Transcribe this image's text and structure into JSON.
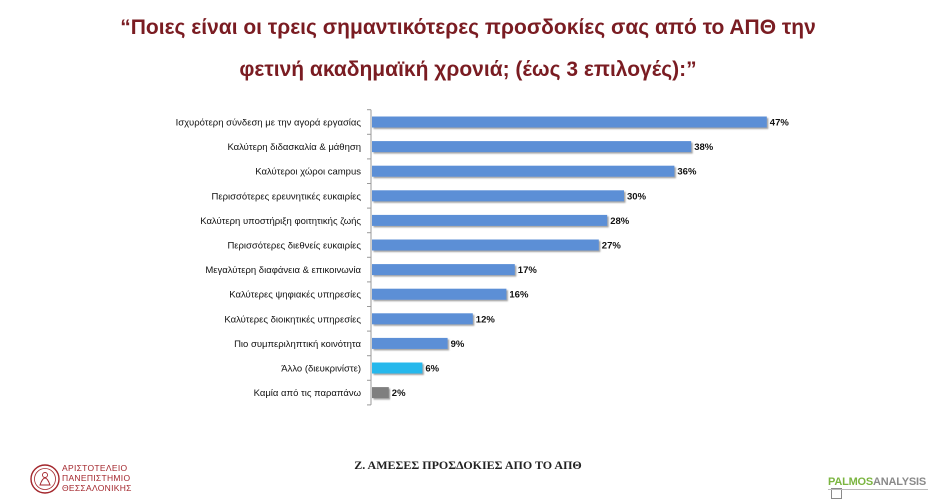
{
  "title_line1": "“Ποιες είναι οι τρεις σημαντικότερες προσδοκίες σας από το ΑΠΘ την",
  "title_line2": "φετινή ακαδημαϊκή χρονιά; (έως 3 επιλογές):”",
  "footer_caption": "Ζ. ΑΜΕΣΕΣ ΠΡΟΣΔΟΚΙΕΣ ΑΠΟ ΤΟ ΑΠΘ",
  "university_name": [
    "ΑΡΙΣΤΟΤΕΛΕΙΟ",
    "ΠΑΝΕΠΙΣΤΗΜΙΟ",
    "ΘΕΣΣΑΛΟΝΙΚΗΣ"
  ],
  "brand": {
    "part1": "PALMOS",
    "part2": "ANALYSIS"
  },
  "colors": {
    "title": "#7a1c22",
    "bar_default": "#5b8fd6",
    "bar_other": "#27b8ec",
    "bar_none": "#7f7f7f",
    "axis": "#9a9a9a"
  },
  "chart_data": {
    "type": "bar",
    "orientation": "horizontal",
    "categories": [
      "Ισχυρότερη σύνδεση με την αγορά εργασίας",
      "Καλύτερη διδασκαλία & μάθηση",
      "Καλύτεροι χώροι campus",
      "Περισσότερες ερευνητικές ευκαιρίες",
      "Καλύτερη υποστήριξη φοιτητικής ζωής",
      "Περισσότερες διεθνείς ευκαιρίες",
      "Μεγαλύτερη διαφάνεια & επικοινωνία",
      "Καλύτερες ψηφιακές υπηρεσίες",
      "Καλύτερες διοικητικές υπηρεσίες",
      "Πιο συμπεριληπτική κοινότητα",
      "Άλλο (διευκρινίστε)",
      "Καμία από τις παραπάνω"
    ],
    "values": [
      47,
      38,
      36,
      30,
      28,
      27,
      17,
      16,
      12,
      9,
      6,
      2
    ],
    "value_labels": [
      "47%",
      "38%",
      "36%",
      "30%",
      "28%",
      "27%",
      "17%",
      "16%",
      "12%",
      "9%",
      "6%",
      "2%"
    ],
    "bar_color_keys": [
      "bar_default",
      "bar_default",
      "bar_default",
      "bar_default",
      "bar_default",
      "bar_default",
      "bar_default",
      "bar_default",
      "bar_default",
      "bar_default",
      "bar_other",
      "bar_none"
    ],
    "xlim": [
      0,
      50
    ],
    "grid": false,
    "legend": "none",
    "unit": "%"
  }
}
